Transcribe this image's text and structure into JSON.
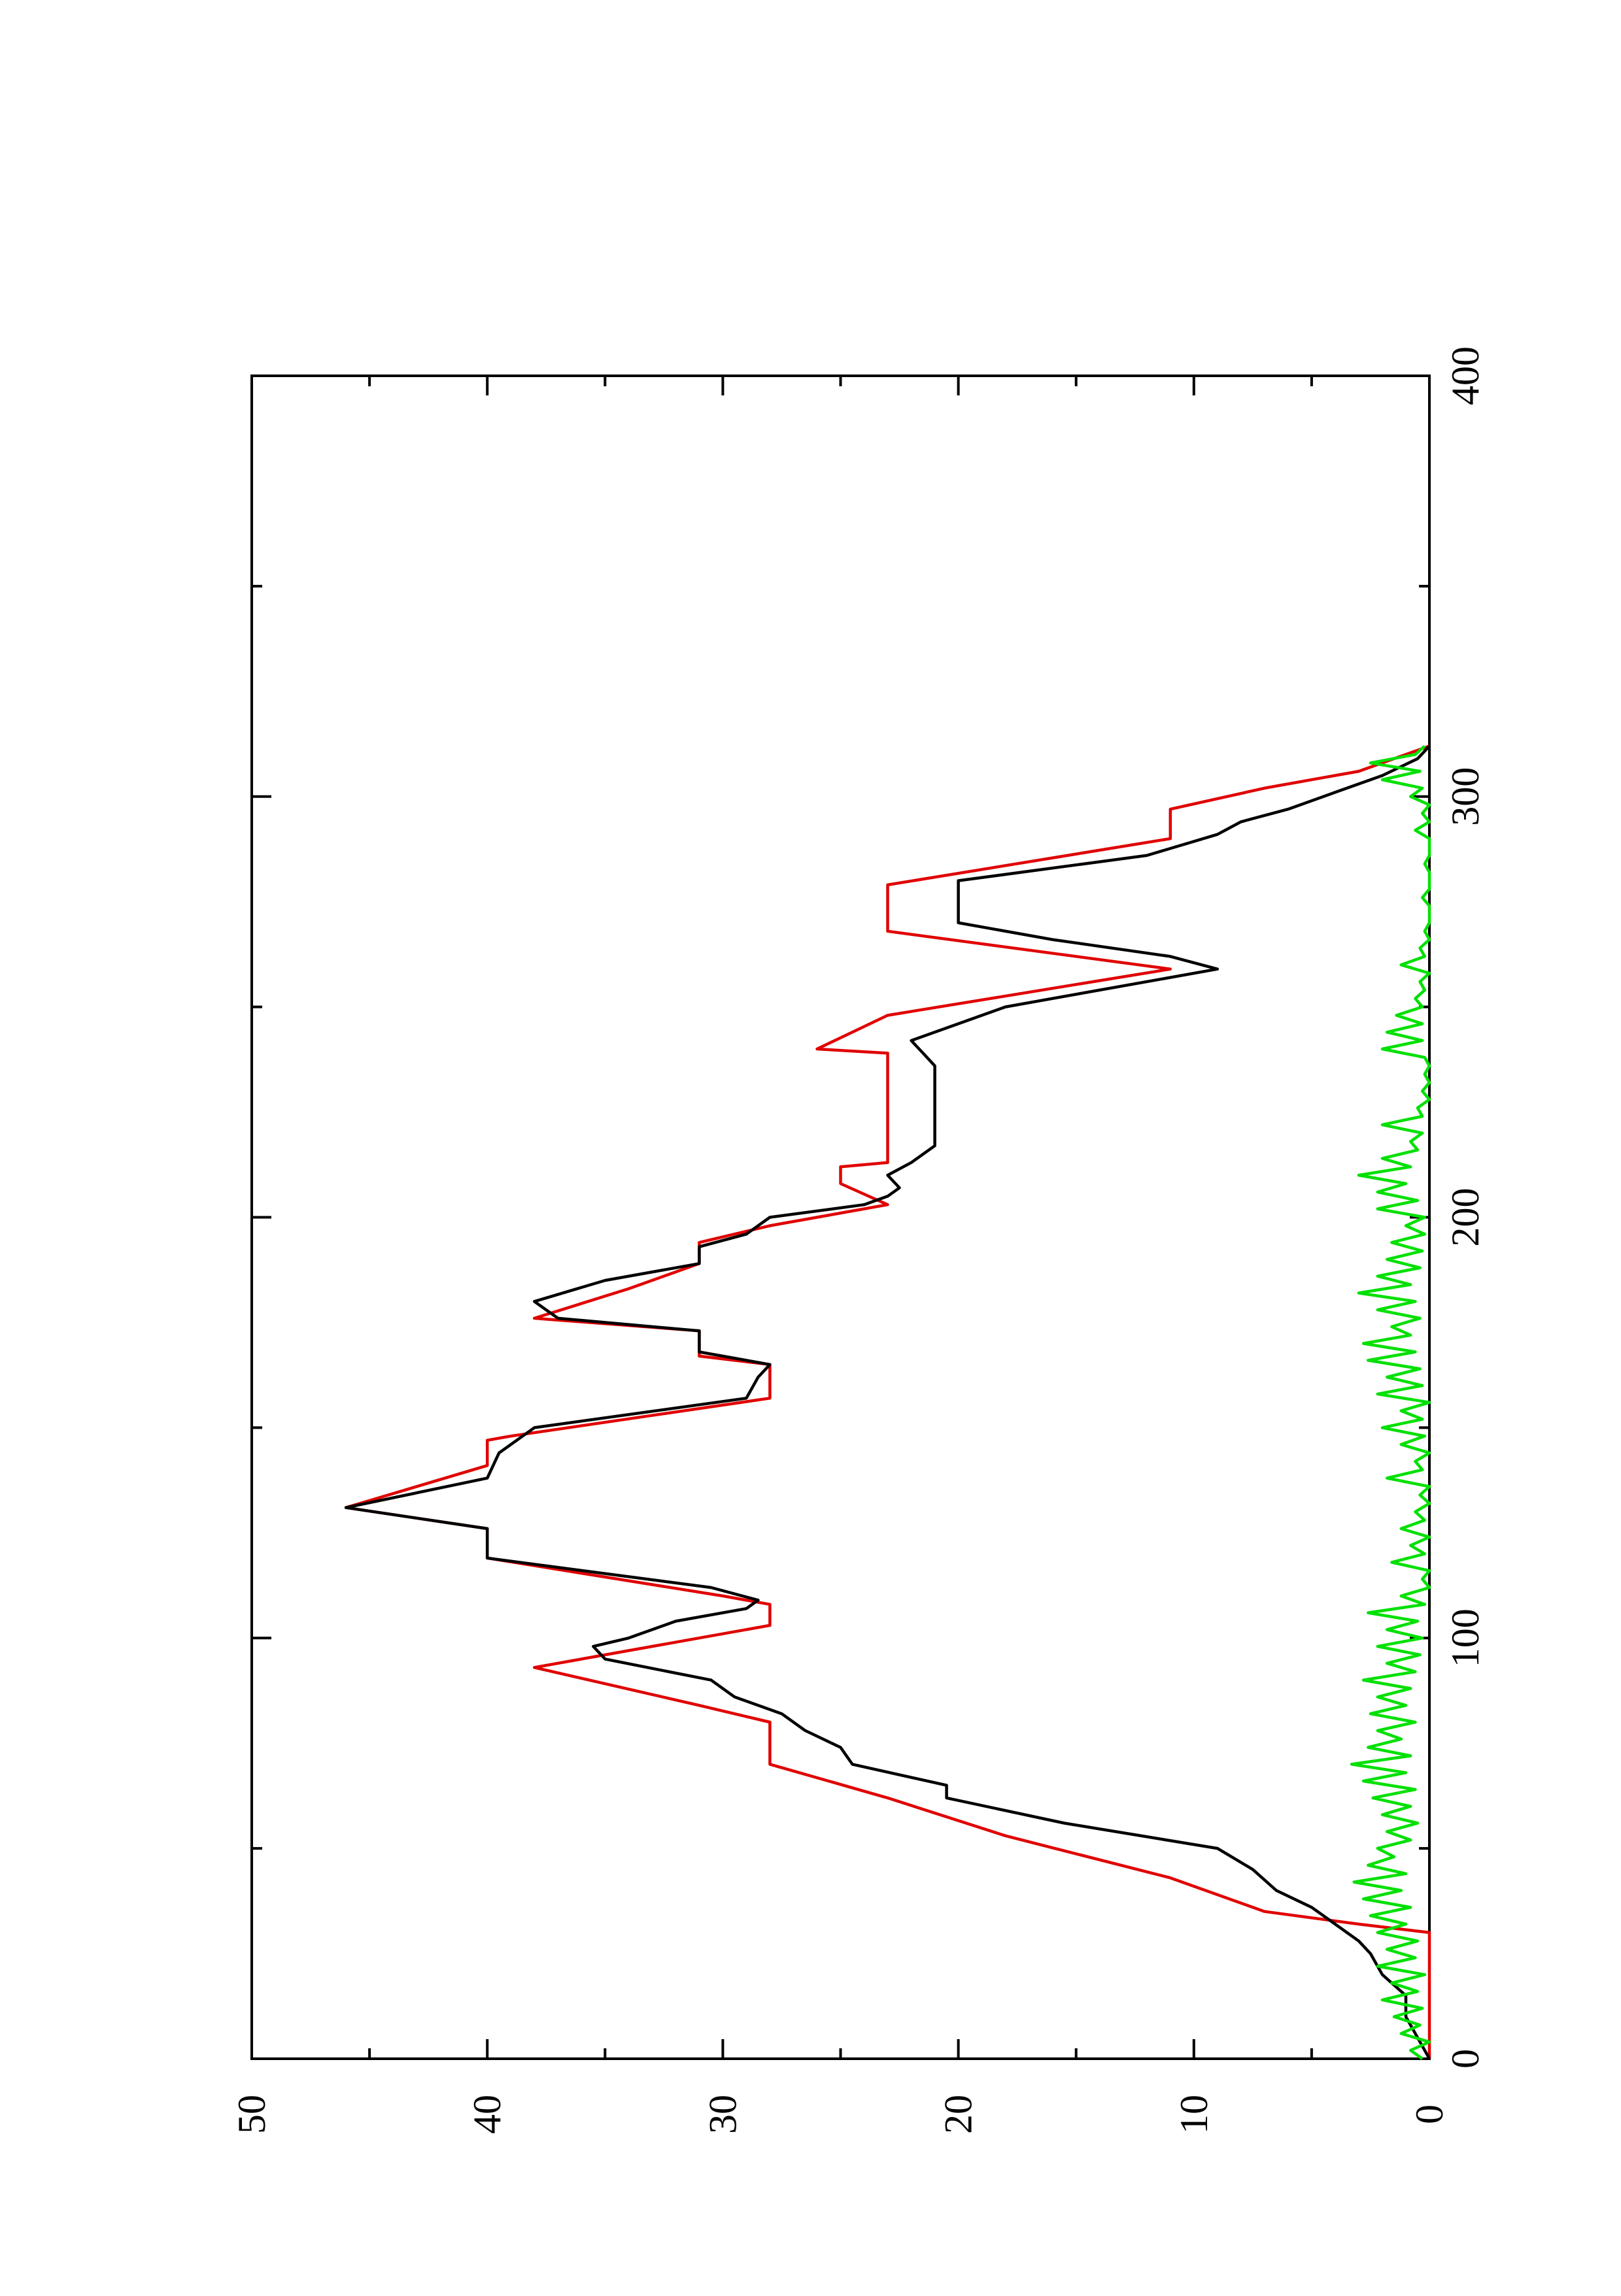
{
  "chart_data": {
    "type": "line",
    "orientation": "rotated-90-ccw",
    "title": "",
    "xlabel": "",
    "ylabel": "",
    "xlim": [
      0,
      400
    ],
    "ylim": [
      0,
      50
    ],
    "x_ticks": [
      0,
      100,
      200,
      300,
      400
    ],
    "x_tick_labels": [
      "0",
      "100",
      "200",
      "300",
      "400"
    ],
    "x_minor_ticks": [
      50,
      150,
      250,
      350
    ],
    "y_ticks": [
      0,
      10,
      20,
      30,
      40,
      50
    ],
    "y_tick_labels": [
      "0",
      "10",
      "20",
      "30",
      "40",
      "50"
    ],
    "y_minor_ticks": [
      5,
      15,
      25,
      35,
      45
    ],
    "grid": false,
    "legend": "none",
    "series": [
      {
        "color": "#e00000",
        "points": [
          [
            0,
            0
          ],
          [
            30,
            0
          ],
          [
            32,
            3
          ],
          [
            35,
            7
          ],
          [
            43,
            11
          ],
          [
            43,
            11
          ],
          [
            53,
            18
          ],
          [
            62,
            23
          ],
          [
            70,
            28
          ],
          [
            80,
            28
          ],
          [
            84,
            31
          ],
          [
            93,
            38
          ],
          [
            103,
            28
          ],
          [
            108,
            28
          ],
          [
            110,
            30
          ],
          [
            119,
            40
          ],
          [
            126,
            40
          ],
          [
            131,
            46
          ],
          [
            141,
            40
          ],
          [
            147,
            40
          ],
          [
            148,
            39
          ],
          [
            157,
            28
          ],
          [
            165,
            28
          ],
          [
            167,
            31
          ],
          [
            173,
            31
          ],
          [
            176,
            38
          ],
          [
            183,
            34
          ],
          [
            189,
            31
          ],
          [
            194,
            31
          ],
          [
            198,
            28
          ],
          [
            203,
            23
          ],
          [
            208,
            25
          ],
          [
            212,
            25
          ],
          [
            213,
            23
          ],
          [
            222,
            23
          ],
          [
            228,
            23
          ],
          [
            239,
            23
          ],
          [
            240,
            26
          ],
          [
            248,
            23
          ],
          [
            259,
            11
          ],
          [
            268,
            23
          ],
          [
            271,
            23
          ],
          [
            275,
            23
          ],
          [
            279,
            23
          ],
          [
            279,
            23
          ],
          [
            290,
            11
          ],
          [
            297,
            11
          ],
          [
            302,
            7
          ],
          [
            306,
            3
          ],
          [
            312,
            0
          ]
        ]
      },
      {
        "color": "#000000",
        "points": [
          [
            0,
            0
          ],
          [
            5,
            0.5
          ],
          [
            10,
            1
          ],
          [
            15,
            1
          ],
          [
            20,
            2
          ],
          [
            25,
            2.5
          ],
          [
            28,
            3
          ],
          [
            32,
            4
          ],
          [
            36,
            5
          ],
          [
            40,
            6.5
          ],
          [
            45,
            7.5
          ],
          [
            50,
            9
          ],
          [
            56,
            15.5
          ],
          [
            62,
            20.5
          ],
          [
            65,
            20.5
          ],
          [
            70,
            24.5
          ],
          [
            74,
            25
          ],
          [
            78,
            26.5
          ],
          [
            82,
            27.5
          ],
          [
            86,
            29.5
          ],
          [
            90,
            30.5
          ],
          [
            95,
            35
          ],
          [
            98,
            35.5
          ],
          [
            100,
            34
          ],
          [
            104,
            32
          ],
          [
            107,
            29
          ],
          [
            109,
            28.5
          ],
          [
            112,
            30.5
          ],
          [
            119,
            40
          ],
          [
            126,
            40
          ],
          [
            131,
            46
          ],
          [
            138,
            40
          ],
          [
            144,
            39.5
          ],
          [
            150,
            38
          ],
          [
            157,
            29
          ],
          [
            162,
            28.5
          ],
          [
            165,
            28
          ],
          [
            168,
            31
          ],
          [
            173,
            31
          ],
          [
            176,
            37
          ],
          [
            180,
            38
          ],
          [
            185,
            35
          ],
          [
            189,
            31
          ],
          [
            193,
            31
          ],
          [
            196,
            29
          ],
          [
            200,
            28
          ],
          [
            203,
            24
          ],
          [
            205,
            23
          ],
          [
            207,
            22.5
          ],
          [
            210,
            23
          ],
          [
            213,
            22
          ],
          [
            217,
            21
          ],
          [
            220,
            21
          ],
          [
            228,
            21
          ],
          [
            236,
            21
          ],
          [
            239,
            21.5
          ],
          [
            242,
            22
          ],
          [
            246,
            20
          ],
          [
            250,
            18
          ],
          [
            259,
            9
          ],
          [
            262,
            11
          ],
          [
            266,
            16
          ],
          [
            270,
            20
          ],
          [
            272,
            20
          ],
          [
            280,
            20
          ],
          [
            286,
            12
          ],
          [
            291,
            9
          ],
          [
            294,
            8
          ],
          [
            297,
            6
          ],
          [
            301,
            4
          ],
          [
            305,
            2
          ],
          [
            309,
            0.5
          ],
          [
            312,
            0
          ]
        ]
      },
      {
        "color": "#00e000",
        "points": [
          [
            0,
            0.3
          ],
          [
            2,
            0.8
          ],
          [
            4,
            0
          ],
          [
            6,
            1.2
          ],
          [
            8,
            0.4
          ],
          [
            10,
            1.5
          ],
          [
            12,
            0.3
          ],
          [
            14,
            2
          ],
          [
            16,
            0.5
          ],
          [
            18,
            1.6
          ],
          [
            20,
            0.2
          ],
          [
            22,
            2.2
          ],
          [
            24,
            0.6
          ],
          [
            26,
            1.8
          ],
          [
            28,
            0.5
          ],
          [
            30,
            2.2
          ],
          [
            32,
            1.0
          ],
          [
            34,
            2.5
          ],
          [
            36,
            0.8
          ],
          [
            38,
            2.8
          ],
          [
            40,
            1.2
          ],
          [
            42,
            3.2
          ],
          [
            44,
            1.0
          ],
          [
            46,
            2.6
          ],
          [
            48,
            1.5
          ],
          [
            50,
            2.2
          ],
          [
            52,
            0.8
          ],
          [
            54,
            1.8
          ],
          [
            56,
            0.5
          ],
          [
            58,
            2.0
          ],
          [
            60,
            0.8
          ],
          [
            62,
            2.4
          ],
          [
            64,
            0.6
          ],
          [
            66,
            2.8
          ],
          [
            68,
            1.0
          ],
          [
            70,
            3.3
          ],
          [
            72,
            0.8
          ],
          [
            74,
            2.6
          ],
          [
            76,
            1.2
          ],
          [
            78,
            2.2
          ],
          [
            80,
            0.6
          ],
          [
            82,
            2.5
          ],
          [
            84,
            1.0
          ],
          [
            86,
            2.2
          ],
          [
            88,
            0.8
          ],
          [
            90,
            2.8
          ],
          [
            92,
            0.6
          ],
          [
            94,
            1.8
          ],
          [
            96,
            0.4
          ],
          [
            98,
            2.2
          ],
          [
            100,
            0.3
          ],
          [
            102,
            1.8
          ],
          [
            104,
            0.5
          ],
          [
            106,
            2.6
          ],
          [
            108,
            0.2
          ],
          [
            110,
            1.2
          ],
          [
            112,
            0.0
          ],
          [
            114,
            0.3
          ],
          [
            116,
            0.0
          ],
          [
            118,
            1.6
          ],
          [
            120,
            0.2
          ],
          [
            122,
            0.8
          ],
          [
            124,
            0.0
          ],
          [
            126,
            1.2
          ],
          [
            128,
            0.2
          ],
          [
            130,
            0.6
          ],
          [
            132,
            0.0
          ],
          [
            134,
            0.4
          ],
          [
            136,
            0.0
          ],
          [
            138,
            1.8
          ],
          [
            140,
            0.3
          ],
          [
            142,
            0.6
          ],
          [
            144,
            0.0
          ],
          [
            146,
            1.2
          ],
          [
            148,
            0.2
          ],
          [
            150,
            2.0
          ],
          [
            152,
            0.3
          ],
          [
            154,
            1.2
          ],
          [
            156,
            0.0
          ],
          [
            158,
            2.2
          ],
          [
            160,
            0.3
          ],
          [
            162,
            1.8
          ],
          [
            164,
            0.4
          ],
          [
            166,
            2.6
          ],
          [
            168,
            0.6
          ],
          [
            170,
            2.8
          ],
          [
            172,
            0.8
          ],
          [
            174,
            1.6
          ],
          [
            176,
            0.4
          ],
          [
            178,
            2.2
          ],
          [
            180,
            0.6
          ],
          [
            182,
            3.0
          ],
          [
            184,
            0.8
          ],
          [
            186,
            2.2
          ],
          [
            188,
            0.4
          ],
          [
            190,
            1.8
          ],
          [
            192,
            0.3
          ],
          [
            194,
            1.6
          ],
          [
            196,
            0.2
          ],
          [
            198,
            1.0
          ],
          [
            200,
            0.2
          ],
          [
            202,
            2.2
          ],
          [
            204,
            0.5
          ],
          [
            206,
            2.2
          ],
          [
            208,
            1.0
          ],
          [
            210,
            3.0
          ],
          [
            212,
            0.8
          ],
          [
            214,
            2.0
          ],
          [
            216,
            0.5
          ],
          [
            218,
            0.8
          ],
          [
            220,
            0.3
          ],
          [
            222,
            2.0
          ],
          [
            224,
            0.3
          ],
          [
            226,
            0.5
          ],
          [
            228,
            0.0
          ],
          [
            230,
            0.3
          ],
          [
            232,
            0.0
          ],
          [
            234,
            0.2
          ],
          [
            236,
            0.0
          ],
          [
            238,
            0.2
          ],
          [
            240,
            2.0
          ],
          [
            242,
            0.3
          ],
          [
            244,
            1.8
          ],
          [
            246,
            0.3
          ],
          [
            248,
            1.4
          ],
          [
            250,
            0.3
          ],
          [
            252,
            0.6
          ],
          [
            254,
            0.2
          ],
          [
            256,
            0.4
          ],
          [
            258,
            0.0
          ],
          [
            260,
            1.2
          ],
          [
            262,
            0.2
          ],
          [
            264,
            0.4
          ],
          [
            266,
            0.0
          ],
          [
            268,
            0.2
          ],
          [
            270,
            0.0
          ],
          [
            274,
            0.0
          ],
          [
            276,
            0.3
          ],
          [
            278,
            0.0
          ],
          [
            282,
            0.0
          ],
          [
            284,
            0.2
          ],
          [
            286,
            0.0
          ],
          [
            290,
            0.0
          ],
          [
            292,
            0.6
          ],
          [
            294,
            0.0
          ],
          [
            296,
            0.3
          ],
          [
            298,
            0.0
          ],
          [
            300,
            0.8
          ],
          [
            302,
            0.3
          ],
          [
            304,
            2.0
          ],
          [
            306,
            0.4
          ],
          [
            308,
            2.5
          ],
          [
            310,
            0.6
          ],
          [
            312,
            0.2
          ]
        ]
      }
    ]
  }
}
